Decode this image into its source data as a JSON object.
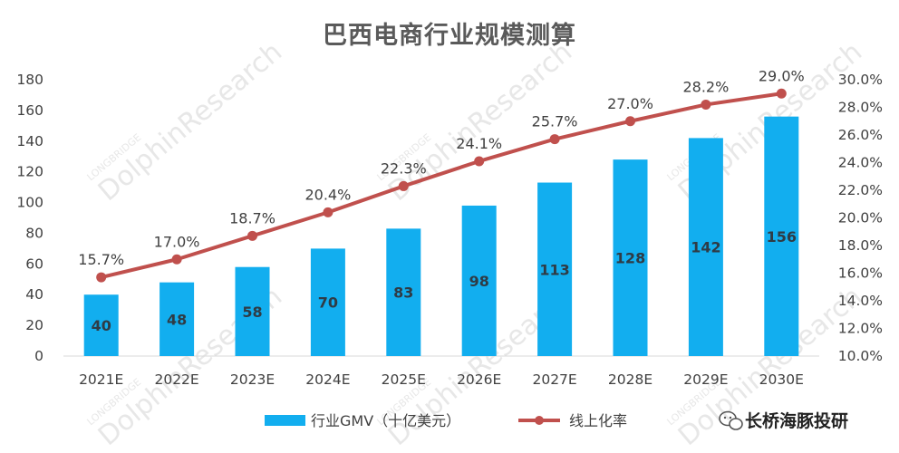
{
  "chart_data": {
    "type": "bar",
    "title": "巴西电商行业规模测算",
    "categories": [
      "2021E",
      "2022E",
      "2023E",
      "2024E",
      "2025E",
      "2026E",
      "2027E",
      "2028E",
      "2029E",
      "2030E"
    ],
    "series": [
      {
        "name": "行业GMV（十亿美元）",
        "type": "bar",
        "axis": "left",
        "values": [
          40,
          48,
          58,
          70,
          83,
          98,
          113,
          128,
          142,
          156
        ],
        "labels": [
          "40",
          "48",
          "58",
          "70",
          "83",
          "98",
          "113",
          "128",
          "142",
          "156"
        ]
      },
      {
        "name": "线上化率",
        "type": "line",
        "axis": "right",
        "values": [
          15.7,
          17.0,
          18.7,
          20.4,
          22.3,
          24.1,
          25.7,
          27.0,
          28.2,
          29.0
        ],
        "labels": [
          "15.7%",
          "17.0%",
          "18.7%",
          "20.4%",
          "22.3%",
          "24.1%",
          "25.7%",
          "27.0%",
          "28.2%",
          "29.0%"
        ]
      }
    ],
    "left_axis": {
      "range": [
        0,
        180
      ],
      "ticks": [
        "0",
        "20",
        "40",
        "60",
        "80",
        "100",
        "120",
        "140",
        "160",
        "180"
      ]
    },
    "right_axis": {
      "range": [
        10,
        30
      ],
      "ticks": [
        "10.0%",
        "12.0%",
        "14.0%",
        "16.0%",
        "18.0%",
        "20.0%",
        "22.0%",
        "24.0%",
        "26.0%",
        "28.0%",
        "30.0%"
      ]
    },
    "grid": false,
    "legend_position": "bottom",
    "colors": {
      "bar": "#12aeef",
      "line": "#c0504d"
    }
  },
  "branding": {
    "text": "长桥海豚投研",
    "icon": "wechat-icon"
  },
  "watermark": {
    "brand": "LONGBRIDGE",
    "name": "DolphinResearch"
  }
}
